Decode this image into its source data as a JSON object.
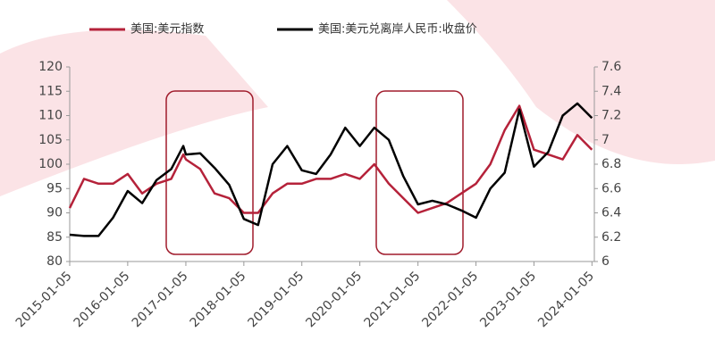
{
  "chart_data": {
    "type": "line",
    "x": [
      "2015-01-05",
      "2015-04-05",
      "2015-07-05",
      "2015-10-05",
      "2016-01-05",
      "2016-04-05",
      "2016-07-05",
      "2016-10-05",
      "2016-12-20",
      "2017-01-05",
      "2017-04-05",
      "2017-07-05",
      "2017-10-05",
      "2018-01-05",
      "2018-04-05",
      "2018-07-05",
      "2018-10-05",
      "2019-01-05",
      "2019-04-05",
      "2019-07-05",
      "2019-10-05",
      "2020-01-05",
      "2020-04-05",
      "2020-07-05",
      "2020-10-05",
      "2021-01-05",
      "2021-04-05",
      "2021-07-05",
      "2021-10-05",
      "2022-01-05",
      "2022-04-05",
      "2022-07-05",
      "2022-10-05",
      "2023-01-05",
      "2023-04-05",
      "2023-07-05",
      "2023-10-05",
      "2024-01-05"
    ],
    "series": [
      {
        "name": "美国:美元指数",
        "color": "#b5223a",
        "values": [
          91,
          97,
          96,
          96,
          98,
          94,
          96,
          97,
          102,
          101,
          99,
          94,
          93,
          90,
          90,
          94,
          96,
          96,
          97,
          97,
          98,
          97,
          100,
          96,
          93,
          90,
          91,
          92,
          94,
          96,
          100,
          107,
          112,
          103,
          102,
          101,
          106,
          103
        ]
      },
      {
        "name": "美国:美元兑离岸人民币:收盘价",
        "color": "#000000",
        "axis": "y2",
        "values": [
          6.22,
          6.21,
          6.21,
          6.36,
          6.58,
          6.48,
          6.67,
          6.76,
          6.95,
          6.88,
          6.89,
          6.77,
          6.63,
          6.35,
          6.3,
          6.8,
          6.95,
          6.75,
          6.72,
          6.88,
          7.1,
          6.95,
          7.1,
          7.0,
          6.7,
          6.47,
          6.5,
          6.47,
          6.42,
          6.36,
          6.6,
          6.73,
          7.25,
          6.78,
          6.9,
          7.2,
          7.3,
          7.18
        ]
      }
    ],
    "xlim": [
      "2015-01-05",
      "2024-01-20"
    ],
    "xticks": [
      "2015-01-05",
      "2016-01-05",
      "2017-01-05",
      "2018-01-05",
      "2019-01-05",
      "2020-01-05",
      "2021-01-05",
      "2022-01-05",
      "2023-01-05",
      "2024-01-05"
    ],
    "ylim": [
      80,
      120
    ],
    "yticks": [
      80,
      85,
      90,
      95,
      100,
      105,
      110,
      115,
      120
    ],
    "y2lim": [
      6,
      7.6
    ],
    "y2ticks": [
      6,
      6.2,
      6.4,
      6.6,
      6.8,
      7,
      {
        "value": 7.2,
        "label": "7.2"
      },
      7.4,
      7.6
    ]
  }
}
